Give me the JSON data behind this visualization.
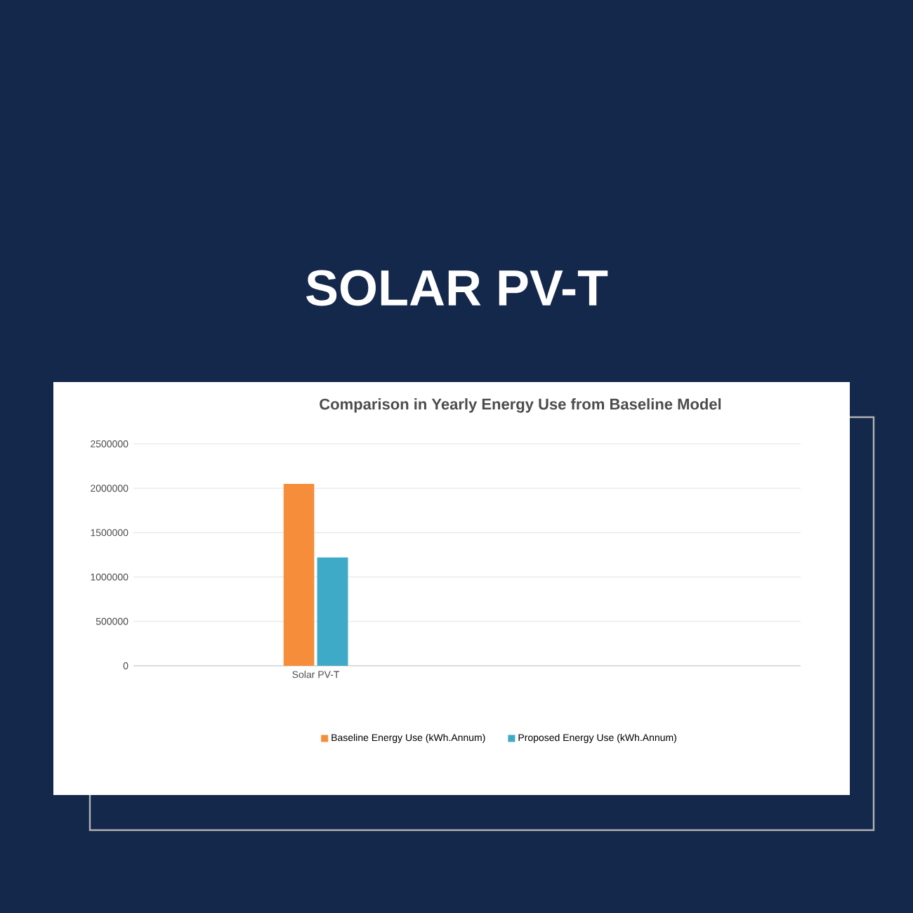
{
  "chart_data": {
    "type": "bar",
    "title": "Comparison  in Yearly Energy Use from Baseline Model",
    "annotations": [
      "SOLAR PV-T"
    ],
    "categories": [
      "Solar PV-T"
    ],
    "series": [
      {
        "name": "Baseline Energy Use (kWh.Annum)",
        "color": "#f58d3a",
        "values": [
          2050000
        ]
      },
      {
        "name": "Proposed Energy Use (kWh.Annum)",
        "color": "#3fa9c8",
        "values": [
          1220000
        ]
      }
    ],
    "ylim": [
      0,
      2500000
    ],
    "yticks": [
      0,
      500000,
      1000000,
      1500000,
      2000000,
      2500000
    ],
    "grid": "y",
    "legend": "bottom"
  }
}
